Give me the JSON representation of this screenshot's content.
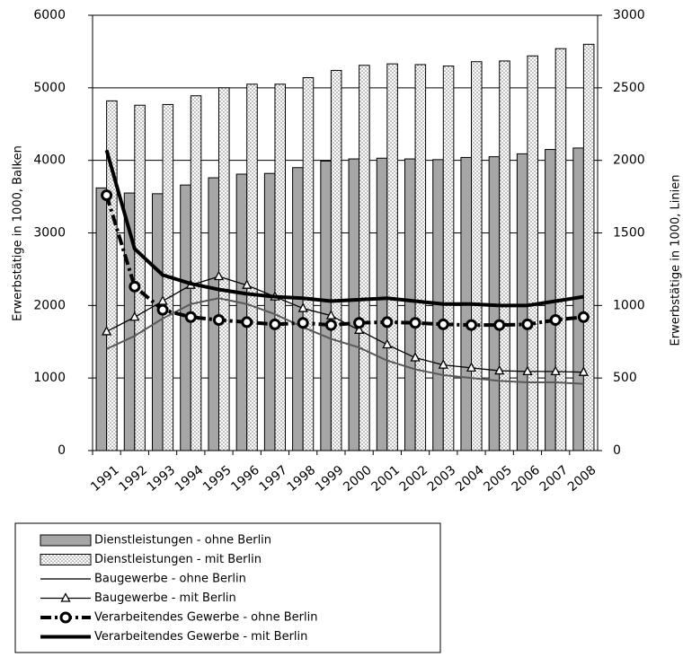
{
  "chart_data": {
    "type": "bar_line",
    "categories": [
      "1991",
      "1992",
      "1993",
      "1994",
      "1995",
      "1996",
      "1997",
      "1998",
      "1999",
      "2000",
      "2001",
      "2002",
      "2003",
      "2004",
      "2005",
      "2006",
      "2007",
      "2008"
    ],
    "ylabel": "Erwerbstätige in 1000, Balken",
    "y2label": "Erwerbstätige in 1000, Linien",
    "ylim": [
      0,
      6000
    ],
    "yticks": [
      0,
      1000,
      2000,
      3000,
      4000,
      5000,
      6000
    ],
    "y2lim": [
      0,
      3000
    ],
    "y2ticks": [
      0,
      500,
      1000,
      1500,
      2000,
      2500,
      3000
    ],
    "grid": true,
    "series": [
      {
        "name": "Dienstleistungen - ohne Berlin",
        "kind": "bar",
        "color": "#a6a6a6",
        "values": [
          3620,
          3550,
          3540,
          3660,
          3760,
          3810,
          3820,
          3900,
          3990,
          4020,
          4030,
          4020,
          4010,
          4040,
          4050,
          4090,
          4150,
          4170
        ]
      },
      {
        "name": "Dienstleistungen - mit Berlin",
        "kind": "bar",
        "color": "#e6e6e6",
        "pattern": "dots",
        "values": [
          4820,
          4760,
          4770,
          4890,
          5000,
          5050,
          5050,
          5140,
          5240,
          5310,
          5330,
          5320,
          5300,
          5360,
          5370,
          5440,
          5540,
          5600
        ]
      },
      {
        "name": "Baugewerbe - ohne Berlin",
        "kind": "line",
        "axis": "y2",
        "color": "#595959",
        "width": 2,
        "values": [
          700,
          790,
          910,
          1010,
          1050,
          1010,
          940,
          850,
          770,
          710,
          620,
          560,
          520,
          500,
          480,
          470,
          470,
          460
        ]
      },
      {
        "name": "Baugewerbe - mit Berlin",
        "kind": "line",
        "axis": "y2",
        "color": "#000000",
        "width": 1.3,
        "marker": "triangle",
        "values": [
          820,
          920,
          1030,
          1140,
          1200,
          1140,
          1060,
          980,
          930,
          830,
          730,
          640,
          590,
          570,
          550,
          545,
          545,
          540
        ]
      },
      {
        "name": "Verarbeitendes Gewerbe - ohne Berlin",
        "kind": "line",
        "axis": "y2",
        "color": "#000000",
        "width": 4,
        "dash": true,
        "marker": "circle",
        "values": [
          1760,
          1130,
          970,
          920,
          900,
          885,
          870,
          880,
          865,
          880,
          885,
          880,
          870,
          865,
          865,
          870,
          900,
          920
        ]
      },
      {
        "name": "Verarbeitendes Gewerbe - mit Berlin",
        "kind": "line",
        "axis": "y2",
        "color": "#000000",
        "width": 4,
        "values": [
          2070,
          1390,
          1210,
          1150,
          1110,
          1080,
          1060,
          1050,
          1030,
          1040,
          1050,
          1030,
          1010,
          1010,
          1000,
          1000,
          1030,
          1060
        ]
      }
    ]
  }
}
